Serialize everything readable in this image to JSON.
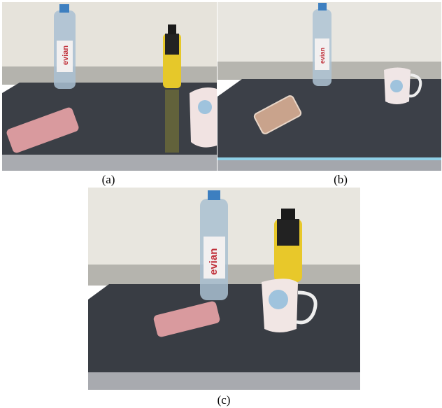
{
  "panels": [
    {
      "caption": "(a)",
      "bottle_label": "evian"
    },
    {
      "caption": "(b)",
      "bottle_label": "evian"
    },
    {
      "caption": "(c)",
      "bottle_label": "evian"
    }
  ]
}
